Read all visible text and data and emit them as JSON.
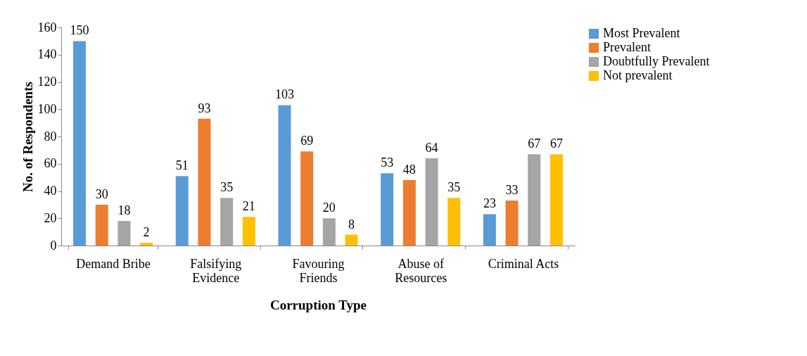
{
  "chart_data": {
    "type": "bar",
    "xlabel": "Corruption Type",
    "ylabel": "No. of Respondents",
    "categories": [
      "Demand Bribe",
      "Falsifying\nEvidence",
      "Favouring\nFriends",
      "Abuse of\nResources",
      "Criminal Acts"
    ],
    "series": [
      {
        "name": "Most Prevalent",
        "color": "#5b9bd5",
        "values": [
          150,
          51,
          103,
          53,
          23
        ]
      },
      {
        "name": "Prevalent",
        "color": "#ed7d31",
        "values": [
          30,
          93,
          69,
          48,
          33
        ]
      },
      {
        "name": "Doubtfully Prevalent",
        "color": "#a5a5a5",
        "values": [
          18,
          35,
          20,
          64,
          67
        ]
      },
      {
        "name": "Not prevalent",
        "color": "#ffc000",
        "values": [
          2,
          21,
          8,
          35,
          67
        ]
      }
    ],
    "ylim": [
      0,
      160
    ],
    "yticks": [
      0,
      20,
      40,
      60,
      80,
      100,
      120,
      140,
      160
    ],
    "grid": false,
    "legend": "right",
    "data_labels": true
  }
}
